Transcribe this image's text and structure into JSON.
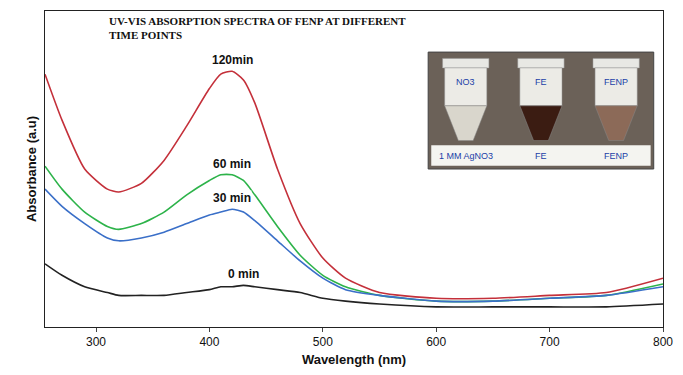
{
  "chart_data": {
    "type": "line",
    "title": "UV-VIS ABSORPTION SPECTRA OF FENP AT DIFFERENT TIME POINTS",
    "x_label": "Wavelength (nm)",
    "y_label": "Absorbance (a.u)",
    "x": [
      255,
      270,
      290,
      310,
      320,
      340,
      360,
      380,
      400,
      410,
      420,
      430,
      440,
      460,
      480,
      500,
      520,
      550,
      600,
      650,
      700,
      750,
      800
    ],
    "series": [
      {
        "name": "120min",
        "color": "#c4303a",
        "values": [
          0.88,
          0.72,
          0.55,
          0.48,
          0.47,
          0.5,
          0.58,
          0.7,
          0.83,
          0.88,
          0.89,
          0.86,
          0.78,
          0.55,
          0.36,
          0.24,
          0.17,
          0.12,
          0.1,
          0.1,
          0.11,
          0.12,
          0.17
        ]
      },
      {
        "name": "60 min",
        "color": "#2db34a",
        "values": [
          0.56,
          0.48,
          0.4,
          0.35,
          0.34,
          0.36,
          0.4,
          0.46,
          0.51,
          0.53,
          0.53,
          0.51,
          0.46,
          0.35,
          0.25,
          0.18,
          0.14,
          0.11,
          0.09,
          0.09,
          0.1,
          0.11,
          0.15
        ]
      },
      {
        "name": "30 min",
        "color": "#3a6fc8",
        "values": [
          0.48,
          0.42,
          0.36,
          0.31,
          0.3,
          0.31,
          0.33,
          0.36,
          0.39,
          0.4,
          0.41,
          0.4,
          0.37,
          0.3,
          0.23,
          0.17,
          0.13,
          0.11,
          0.09,
          0.09,
          0.1,
          0.11,
          0.14
        ]
      },
      {
        "name": "0 min",
        "color": "#222222",
        "values": [
          0.22,
          0.18,
          0.14,
          0.12,
          0.11,
          0.11,
          0.11,
          0.12,
          0.13,
          0.14,
          0.14,
          0.145,
          0.14,
          0.13,
          0.12,
          0.1,
          0.09,
          0.08,
          0.07,
          0.07,
          0.07,
          0.07,
          0.08
        ]
      }
    ],
    "xlim": [
      255,
      800
    ],
    "xticks": [
      300,
      400,
      500,
      600,
      700,
      800
    ],
    "ylim": [
      0,
      1.1
    ],
    "yticks": [],
    "grid": false,
    "tick_labels": "x",
    "inset": {
      "tube_labels": [
        "NO3",
        "FE",
        "FENP"
      ],
      "strip_labels": [
        "1 MM AgNO3",
        "FE",
        "FENP"
      ]
    }
  }
}
